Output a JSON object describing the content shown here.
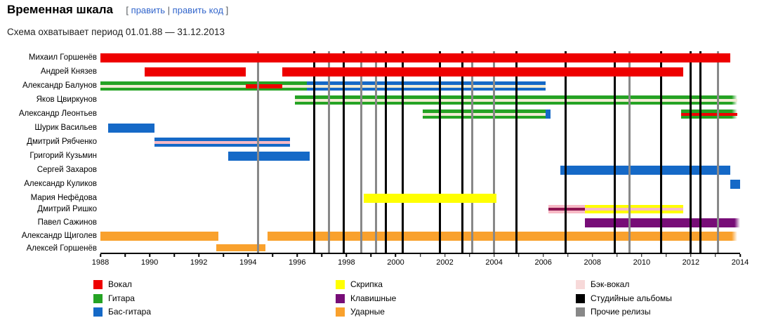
{
  "header": {
    "title": "Временная шкала",
    "bracket_open": "[",
    "edit_label": "править",
    "separator": " | ",
    "edit_code_label": "править код",
    "bracket_close": "]",
    "subtitle": "Схема охватывает период 01.01.88 — 31.12.2013"
  },
  "chart_data": {
    "type": "timeline",
    "title": "Временная шкала",
    "x_axis": {
      "start": 1988,
      "end": 2014,
      "minor_tick_step": 1,
      "major_tick_step": 2,
      "tick_labels": [
        "1988",
        "1990",
        "1992",
        "1994",
        "1996",
        "1998",
        "2000",
        "2002",
        "2004",
        "2006",
        "2008",
        "2010",
        "2012",
        "2014"
      ]
    },
    "colors": {
      "red": "#ee0000",
      "green": "#25a324",
      "blue": "#1569c7",
      "yellow": "#ffff00",
      "purple": "#770d77",
      "orange": "#f9a12d",
      "pink": "#f7b9c5",
      "lightpink": "#f7d9d9",
      "cream": "#f2ecd4",
      "maroon": "#8d1450",
      "black": "#000000",
      "gray": "#888888"
    },
    "rows": [
      {
        "name": "Михаил Горшенёв",
        "front": true,
        "segments": [
          {
            "start": 1988.0,
            "end": 2013.6,
            "color": "red"
          }
        ]
      },
      {
        "name": "Андрей Князев",
        "front": true,
        "segments": [
          {
            "start": 1989.8,
            "end": 1993.9,
            "color": "red"
          },
          {
            "start": 1995.4,
            "end": 2011.7,
            "color": "red"
          }
        ]
      },
      {
        "name": "Александр Балунов",
        "segments": [
          {
            "start": 1988.0,
            "end": 1996.4,
            "color": "green",
            "stripe": "cream"
          },
          {
            "start": 1993.9,
            "end": 1995.4,
            "color": "red",
            "mid": true
          },
          {
            "start": 1996.4,
            "end": 2006.1,
            "color": "blue",
            "stripe": "cream"
          }
        ]
      },
      {
        "name": "Яков Цвиркунов",
        "segments": [
          {
            "start": 1995.9,
            "end": 2013.9,
            "color": "green",
            "stripe": "cream",
            "fade": true
          }
        ]
      },
      {
        "name": "Александр Леонтьев",
        "segments": [
          {
            "start": 2001.1,
            "end": 2006.1,
            "color": "green",
            "stripe": "cream"
          },
          {
            "start": 2006.1,
            "end": 2006.3,
            "color": "blue"
          },
          {
            "start": 2011.6,
            "end": 2013.9,
            "color": "green",
            "stripe": "red",
            "fade": true
          }
        ]
      },
      {
        "name": "Шурик Васильев",
        "segments": [
          {
            "start": 1988.3,
            "end": 1990.2,
            "color": "blue"
          }
        ]
      },
      {
        "name": "Дмитрий Рябченко",
        "segments": [
          {
            "start": 1990.2,
            "end": 1995.7,
            "color": "blue",
            "stripe": "pink"
          }
        ]
      },
      {
        "name": "Григорий Кузьмин",
        "segments": [
          {
            "start": 1993.2,
            "end": 1996.5,
            "color": "blue"
          }
        ]
      },
      {
        "name": "Сергей Захаров",
        "segments": [
          {
            "start": 2006.7,
            "end": 2013.6,
            "color": "blue"
          }
        ]
      },
      {
        "name": "Александр Куликов",
        "segments": [
          {
            "start": 2013.6,
            "end": 2014.0,
            "color": "blue"
          }
        ]
      },
      {
        "name": "Мария Нефёдова",
        "front": true,
        "segments": [
          {
            "start": 1998.7,
            "end": 2004.1,
            "color": "yellow"
          }
        ]
      },
      {
        "name": "Дмитрий Ришко",
        "segments": [
          {
            "start": 2006.2,
            "end": 2007.7,
            "color": "pink",
            "stripe": "maroon"
          },
          {
            "start": 2007.7,
            "end": 2011.7,
            "color": "yellow",
            "stripe": "pink"
          }
        ]
      },
      {
        "name": "Павел Сажинов",
        "segments": [
          {
            "start": 2007.7,
            "end": 2014.0,
            "color": "purple",
            "fade": true
          }
        ]
      },
      {
        "name": "Александр Щиголев",
        "segments": [
          {
            "start": 1988.0,
            "end": 1992.8,
            "color": "orange"
          },
          {
            "start": 1994.8,
            "end": 2013.9,
            "color": "orange",
            "fade": true
          }
        ]
      },
      {
        "name": "Алексей Горшенёв",
        "segments": [
          {
            "start": 1992.7,
            "end": 1994.7,
            "color": "orange"
          }
        ]
      }
    ],
    "lines": {
      "studio_albums": [
        1996.7,
        1997.9,
        1999.6,
        2000.3,
        2001.8,
        2002.7,
        2004.9,
        2006.9,
        2008.9,
        2010.8,
        2012.0,
        2012.4
      ],
      "other_releases": [
        1994.4,
        1997.3,
        1998.6,
        1999.2,
        2003.1,
        2004.0,
        2009.5,
        2013.1
      ]
    },
    "legend": {
      "columns": [
        {
          "items": [
            {
              "label": "Вокал",
              "color_key": "red"
            },
            {
              "label": "Гитара",
              "color_key": "green"
            },
            {
              "label": "Бас-гитара",
              "color_key": "blue"
            }
          ]
        },
        {
          "items": [
            {
              "label": "Скрипка",
              "color_key": "yellow"
            },
            {
              "label": "Клавишные",
              "color_key": "purple"
            },
            {
              "label": "Ударные",
              "color_key": "orange"
            }
          ]
        },
        {
          "items": [
            {
              "label": "Бэк-вокал",
              "color_key": "lightpink"
            },
            {
              "label": "Студийные альбомы",
              "color_key": "black"
            },
            {
              "label": "Прочие релизы",
              "color_key": "gray"
            }
          ]
        }
      ]
    }
  }
}
